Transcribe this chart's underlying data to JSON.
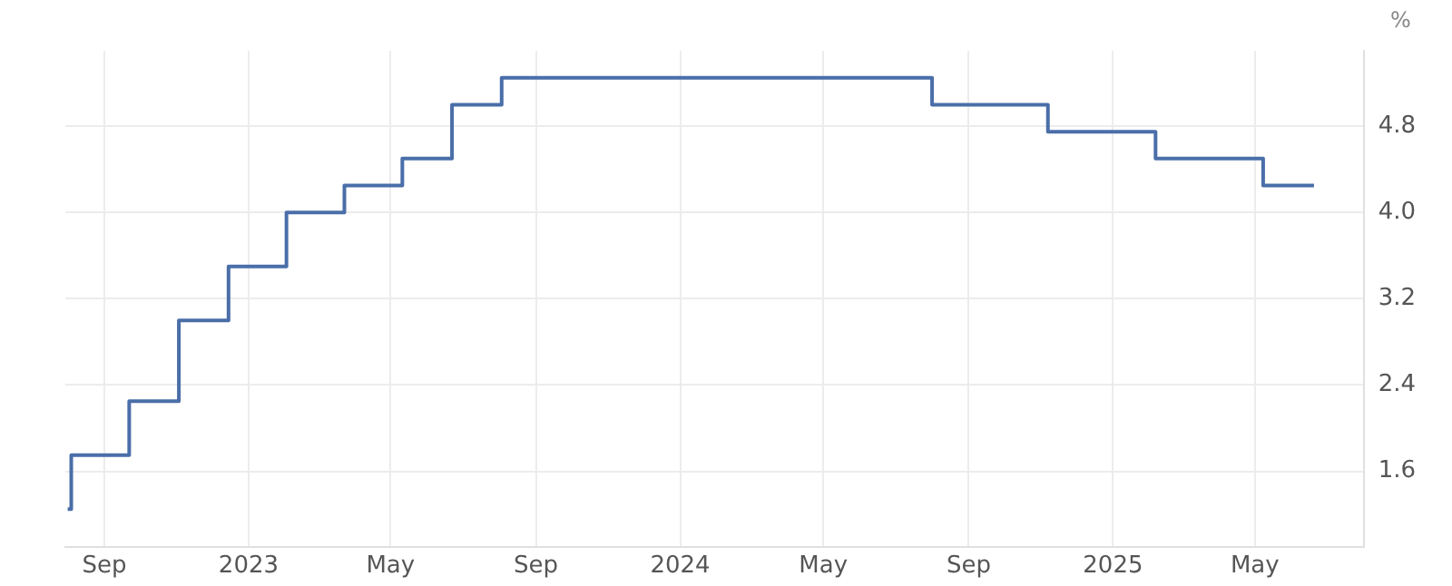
{
  "chart_data": {
    "type": "step",
    "ylabel": "%",
    "x": [
      "2022-08-01",
      "2022-08-04",
      "2022-09-22",
      "2022-11-03",
      "2022-12-15",
      "2023-02-02",
      "2023-03-23",
      "2023-05-11",
      "2023-06-22",
      "2023-08-03",
      "2024-08-01",
      "2024-11-07",
      "2025-02-06",
      "2025-05-08",
      "2025-06-20"
    ],
    "series": [
      {
        "color": "#4a6ea8",
        "values": [
          1.25,
          1.75,
          2.25,
          3.0,
          3.5,
          4.0,
          4.25,
          4.5,
          5.0,
          5.25,
          5.0,
          4.75,
          4.5,
          4.25,
          4.25
        ]
      }
    ],
    "xlim": [
      "2022-07-30",
      "2025-08-01"
    ],
    "xticks": [
      {
        "value": "2022-09-01",
        "label": "Sep"
      },
      {
        "value": "2023-01-01",
        "label": "2023"
      },
      {
        "value": "2023-05-01",
        "label": "May"
      },
      {
        "value": "2023-09-01",
        "label": "Sep"
      },
      {
        "value": "2024-01-01",
        "label": "2024"
      },
      {
        "value": "2024-05-01",
        "label": "May"
      },
      {
        "value": "2024-09-01",
        "label": "Sep"
      },
      {
        "value": "2025-01-01",
        "label": "2025"
      },
      {
        "value": "2025-05-01",
        "label": "May"
      }
    ],
    "ylim": [
      0.9,
      5.5
    ],
    "yticks": [
      1.6,
      2.4,
      3.2,
      {
        "value": 4,
        "label": "4.0"
      },
      4.8
    ],
    "grid": true,
    "legend": false,
    "marker": "none"
  }
}
